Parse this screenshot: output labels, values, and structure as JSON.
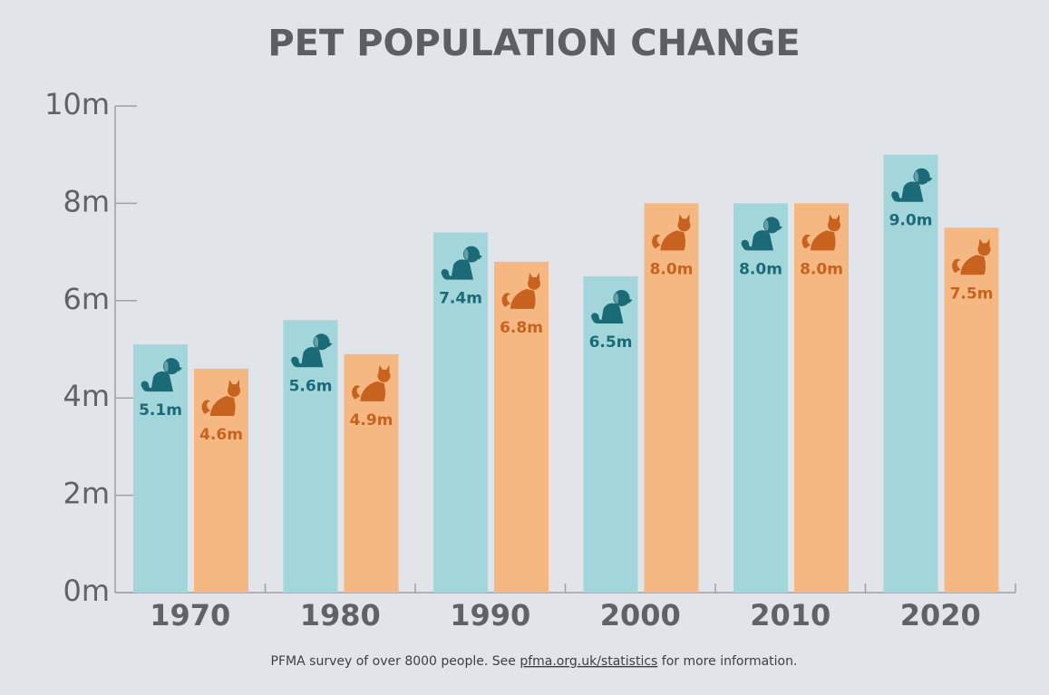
{
  "chart_data": {
    "type": "bar",
    "title": "PET POPULATION CHANGE",
    "categories": [
      "1970",
      "1980",
      "1990",
      "2000",
      "2010",
      "2020"
    ],
    "series": [
      {
        "color": "#a3d6db",
        "label_color": "#1b6a78",
        "icon": "dog",
        "values": [
          5.1,
          5.6,
          7.4,
          6.5,
          8.0,
          9.0
        ],
        "value_labels": [
          "5.1m",
          "5.6m",
          "7.4m",
          "6.5m",
          "8.0m",
          "9.0m"
        ]
      },
      {
        "color": "#f6b882",
        "label_color": "#c8631f",
        "icon": "cat",
        "values": [
          4.6,
          4.9,
          6.8,
          8.0,
          8.0,
          7.5
        ],
        "value_labels": [
          "4.6m",
          "4.9m",
          "6.8m",
          "8.0m",
          "8.0m",
          "7.5m"
        ]
      }
    ],
    "ylim": [
      0,
      10
    ],
    "yticks": [
      {
        "value": 0,
        "label": "0m"
      },
      {
        "value": 2,
        "label": "2m"
      },
      {
        "value": 4,
        "label": "4m"
      },
      {
        "value": 6,
        "label": "6m"
      },
      {
        "value": 8,
        "label": "8m"
      },
      {
        "value": 10,
        "label": "10m"
      }
    ],
    "grid": false
  },
  "footer": {
    "before": "PFMA survey of over 8000 people. See ",
    "link": "pfma.org.uk/statistics",
    "after": " for more information."
  }
}
